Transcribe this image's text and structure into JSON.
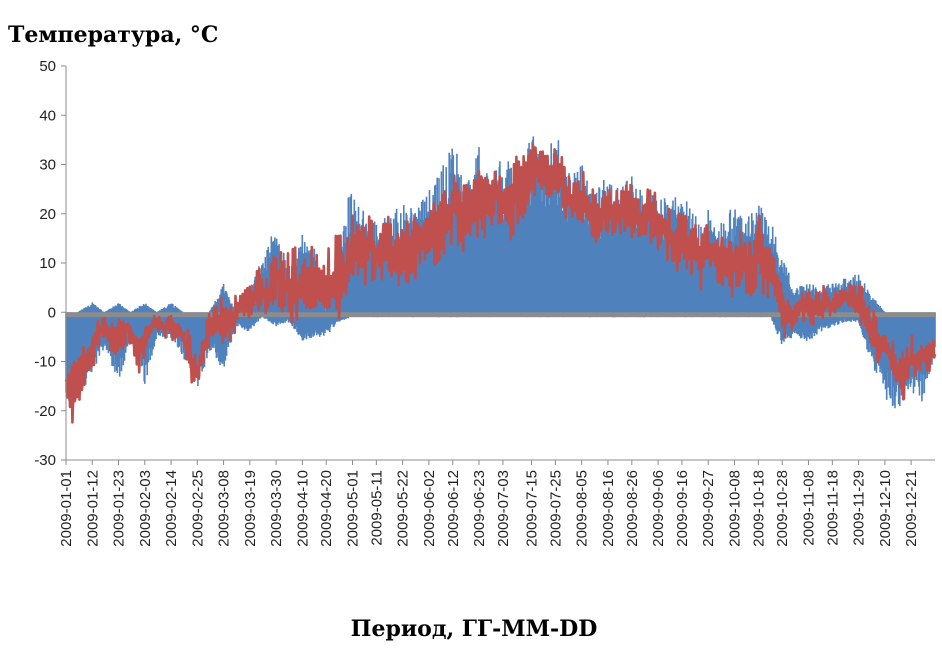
{
  "chart_data": {
    "type": "line",
    "ylabel": "Температура, °С",
    "xlabel": "Период, ГГ-ММ-DD",
    "ylim": [
      -30,
      50
    ],
    "yticks": [
      50,
      40,
      30,
      20,
      10,
      0,
      -10,
      -20,
      -30
    ],
    "grid": false,
    "xlim": [
      "2009-01-01",
      "2009-12-31"
    ],
    "xtick_labels": [
      "2009-01-01",
      "2009-01-12",
      "2009-01-23",
      "2009-02-03",
      "2009-02-14",
      "2009-02-25",
      "2009-03-08",
      "2009-03-19",
      "2009-03-30",
      "2009-04-10",
      "2009-04-20",
      "2009-05-01",
      "2009-05-11",
      "2009-05-22",
      "2009-06-02",
      "2009-06-12",
      "2009-06-23",
      "2009-07-03",
      "2009-07-15",
      "2009-07-25",
      "2009-08-05",
      "2009-08-16",
      "2009-08-26",
      "2009-09-06",
      "2009-09-16",
      "2009-09-27",
      "2009-10-08",
      "2009-10-18",
      "2009-10-28",
      "2009-11-08",
      "2009-11-18",
      "2009-11-29",
      "2009-12-10",
      "2009-12-21"
    ],
    "series": [
      {
        "color": "#4f81bd",
        "style": "dense-bars",
        "x": [
          "2009-01-01",
          "2009-01-06",
          "2009-01-12",
          "2009-01-17",
          "2009-01-23",
          "2009-01-28",
          "2009-02-03",
          "2009-02-08",
          "2009-02-14",
          "2009-02-19",
          "2009-02-25",
          "2009-03-02",
          "2009-03-08",
          "2009-03-13",
          "2009-03-19",
          "2009-03-24",
          "2009-03-30",
          "2009-04-04",
          "2009-04-10",
          "2009-04-15",
          "2009-04-20",
          "2009-04-25",
          "2009-05-01",
          "2009-05-06",
          "2009-05-11",
          "2009-05-16",
          "2009-05-22",
          "2009-05-27",
          "2009-06-02",
          "2009-06-07",
          "2009-06-12",
          "2009-06-17",
          "2009-06-23",
          "2009-06-28",
          "2009-07-03",
          "2009-07-09",
          "2009-07-15",
          "2009-07-20",
          "2009-07-25",
          "2009-07-30",
          "2009-08-05",
          "2009-08-10",
          "2009-08-16",
          "2009-08-21",
          "2009-08-26",
          "2009-08-31",
          "2009-09-06",
          "2009-09-11",
          "2009-09-16",
          "2009-09-21",
          "2009-09-27",
          "2009-10-02",
          "2009-10-08",
          "2009-10-13",
          "2009-10-18",
          "2009-10-23",
          "2009-10-28",
          "2009-11-02",
          "2009-11-08",
          "2009-11-13",
          "2009-11-18",
          "2009-11-23",
          "2009-11-29",
          "2009-12-04",
          "2009-12-10",
          "2009-12-15",
          "2009-12-21",
          "2009-12-26",
          "2009-12-31"
        ],
        "high": [
          0,
          0,
          2,
          0,
          2,
          0,
          2,
          0,
          2,
          0,
          0,
          0,
          6,
          0,
          5,
          11,
          18,
          10,
          16,
          13,
          0,
          17,
          26,
          20,
          19,
          20,
          22,
          21,
          26,
          29,
          35,
          27,
          34,
          26,
          33,
          30,
          37,
          30,
          37,
          29,
          30,
          26,
          28,
          25,
          28,
          24,
          27,
          22,
          25,
          20,
          21,
          19,
          22,
          19,
          22,
          19,
          12,
          5,
          6,
          5,
          6,
          7,
          8,
          4,
          0,
          0,
          0,
          0,
          0
        ],
        "low": [
          -21,
          -18,
          -12,
          -8,
          -14,
          -6,
          -15,
          -5,
          -6,
          -9,
          -16,
          -8,
          -12,
          -3,
          -4,
          -1,
          -3,
          -2,
          -6,
          -5,
          -5,
          -2,
          -1,
          -1,
          -1,
          -1,
          -1,
          -1,
          -1,
          -1,
          -1,
          -1,
          -1,
          -1,
          -1,
          -1,
          -1,
          -1,
          -1,
          -1,
          -1,
          -1,
          -1,
          -1,
          -1,
          -1,
          -1,
          -1,
          -1,
          -1,
          -1,
          -1,
          -1,
          -1,
          -1,
          -1,
          -7,
          -5,
          -6,
          -4,
          -3,
          -2,
          -2,
          -10,
          -18,
          -20,
          -16,
          -19,
          -8
        ]
      },
      {
        "color": "#c0504d",
        "style": "line",
        "x": [
          "2009-01-01",
          "2009-01-04",
          "2009-01-08",
          "2009-01-12",
          "2009-01-16",
          "2009-01-20",
          "2009-01-23",
          "2009-01-27",
          "2009-01-31",
          "2009-02-03",
          "2009-02-07",
          "2009-02-11",
          "2009-02-14",
          "2009-02-18",
          "2009-02-22",
          "2009-02-25",
          "2009-03-01",
          "2009-03-05",
          "2009-03-08",
          "2009-03-12",
          "2009-03-16",
          "2009-03-19",
          "2009-03-23",
          "2009-03-27",
          "2009-03-30",
          "2009-04-03",
          "2009-04-07",
          "2009-04-10",
          "2009-04-14",
          "2009-04-17",
          "2009-04-20",
          "2009-04-24",
          "2009-04-28",
          "2009-05-01",
          "2009-05-05",
          "2009-05-08",
          "2009-05-11",
          "2009-05-15",
          "2009-05-18",
          "2009-05-22",
          "2009-05-26",
          "2009-05-29",
          "2009-06-02",
          "2009-06-06",
          "2009-06-09",
          "2009-06-12",
          "2009-06-16",
          "2009-06-20",
          "2009-06-23",
          "2009-06-27",
          "2009-06-30",
          "2009-07-03",
          "2009-07-07",
          "2009-07-11",
          "2009-07-15",
          "2009-07-18",
          "2009-07-22",
          "2009-07-25",
          "2009-07-29",
          "2009-08-01",
          "2009-08-05",
          "2009-08-09",
          "2009-08-12",
          "2009-08-16",
          "2009-08-20",
          "2009-08-23",
          "2009-08-26",
          "2009-08-30",
          "2009-09-02",
          "2009-09-06",
          "2009-09-10",
          "2009-09-13",
          "2009-09-16",
          "2009-09-20",
          "2009-09-24",
          "2009-09-27",
          "2009-10-01",
          "2009-10-05",
          "2009-10-08",
          "2009-10-12",
          "2009-10-15",
          "2009-10-18",
          "2009-10-22",
          "2009-10-25",
          "2009-10-28",
          "2009-11-01",
          "2009-11-05",
          "2009-11-08",
          "2009-11-12",
          "2009-11-15",
          "2009-11-18",
          "2009-11-22",
          "2009-11-26",
          "2009-11-29",
          "2009-12-03",
          "2009-12-07",
          "2009-12-10",
          "2009-12-14",
          "2009-12-18",
          "2009-12-21",
          "2009-12-25",
          "2009-12-28",
          "2009-12-31"
        ],
        "min": [
          -18,
          -24,
          -20,
          -12,
          -6,
          -8,
          -10,
          -5,
          -14,
          -10,
          -3,
          -5,
          -6,
          -5,
          -15,
          -17,
          -8,
          -5,
          -8,
          -6,
          -2,
          -2,
          -3,
          -1,
          0,
          -4,
          -6,
          -2,
          -1,
          -2,
          -4,
          -5,
          0,
          5,
          4,
          6,
          5,
          6,
          3,
          6,
          4,
          8,
          9,
          10,
          12,
          14,
          12,
          12,
          16,
          14,
          18,
          14,
          14,
          18,
          20,
          24,
          22,
          22,
          18,
          16,
          16,
          14,
          12,
          14,
          12,
          14,
          14,
          12,
          14,
          12,
          10,
          8,
          8,
          6,
          4,
          6,
          4,
          2,
          2,
          4,
          2,
          6,
          0,
          0,
          -6,
          -4,
          -2,
          -4,
          -2,
          -2,
          -2,
          0,
          -1,
          -2,
          -8,
          -12,
          -10,
          -16,
          -20,
          -16,
          -12,
          -14,
          -10
        ],
        "max": [
          -10,
          -8,
          -6,
          -2,
          0,
          -1,
          0,
          -1,
          -3,
          -2,
          0,
          -1,
          1,
          -2,
          -3,
          -8,
          0,
          2,
          4,
          3,
          6,
          6,
          10,
          8,
          15,
          12,
          14,
          10,
          14,
          12,
          12,
          18,
          14,
          22,
          20,
          22,
          18,
          22,
          18,
          20,
          22,
          20,
          24,
          26,
          28,
          32,
          30,
          30,
          33,
          28,
          32,
          28,
          32,
          33,
          35,
          34,
          32,
          35,
          30,
          28,
          30,
          26,
          24,
          28,
          26,
          26,
          26,
          24,
          26,
          24,
          22,
          20,
          22,
          20,
          18,
          22,
          18,
          16,
          18,
          20,
          16,
          22,
          18,
          14,
          6,
          2,
          4,
          6,
          4,
          6,
          4,
          6,
          6,
          6,
          4,
          -2,
          -4,
          -6,
          -8,
          -4,
          -6,
          -4,
          -5
        ]
      }
    ]
  }
}
